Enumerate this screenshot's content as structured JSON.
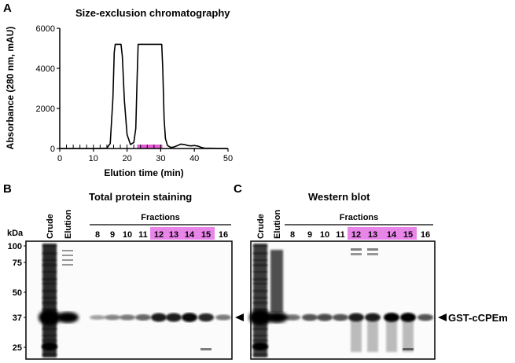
{
  "panels": {
    "A": {
      "letter": "A",
      "title": "Size-exclusion chromatography"
    },
    "B": {
      "letter": "B",
      "title": "Total protein staining"
    },
    "C": {
      "letter": "C",
      "title": "Western blot"
    }
  },
  "chart_data": {
    "type": "line",
    "title": "Size-exclusion chromatography",
    "xlabel": "Elution time (min)",
    "ylabel": "Absorbance (280 nm, mAU)",
    "xlim": [
      0,
      50
    ],
    "ylim": [
      0,
      6000
    ],
    "xticks": [
      0,
      10,
      20,
      30,
      40,
      50
    ],
    "yticks": [
      0,
      2000,
      4000,
      6000
    ],
    "grid": false,
    "highlight_range": [
      23,
      30.5
    ],
    "highlight_color": "#e85ad8",
    "series": [
      {
        "x": [
          0,
          10,
          14,
          15,
          15.8,
          16.2,
          16.5,
          18.2,
          18.6,
          19.2,
          20,
          21,
          22,
          22.6,
          23,
          23.3,
          23.6,
          30.3,
          30.6,
          31,
          31.4,
          32,
          33,
          34,
          35,
          36,
          37,
          38,
          39,
          40,
          41,
          42,
          43,
          50
        ],
        "y": [
          0,
          0,
          20,
          250,
          2500,
          4800,
          5200,
          5200,
          4600,
          2400,
          700,
          200,
          300,
          1000,
          3500,
          5200,
          5200,
          5200,
          4000,
          1500,
          500,
          150,
          50,
          80,
          150,
          220,
          200,
          150,
          130,
          150,
          120,
          60,
          20,
          0
        ]
      }
    ],
    "fraction_ticks": [
      0,
      2,
      4,
      6,
      8,
      10,
      12,
      14,
      16,
      18,
      20,
      22,
      24,
      26,
      28,
      30
    ]
  },
  "gels": {
    "kda_label": "kDa",
    "fractions_label": "Fractions",
    "lanes_top": [
      "Crude",
      "Elution"
    ],
    "fraction_numbers": [
      "8",
      "9",
      "10",
      "11",
      "12",
      "13",
      "14",
      "15",
      "16"
    ],
    "marker_labels": [
      "100",
      "75",
      "50",
      "37",
      "25"
    ],
    "band_label": "GST-cCPEm",
    "highlight_color": "#e985e9"
  }
}
